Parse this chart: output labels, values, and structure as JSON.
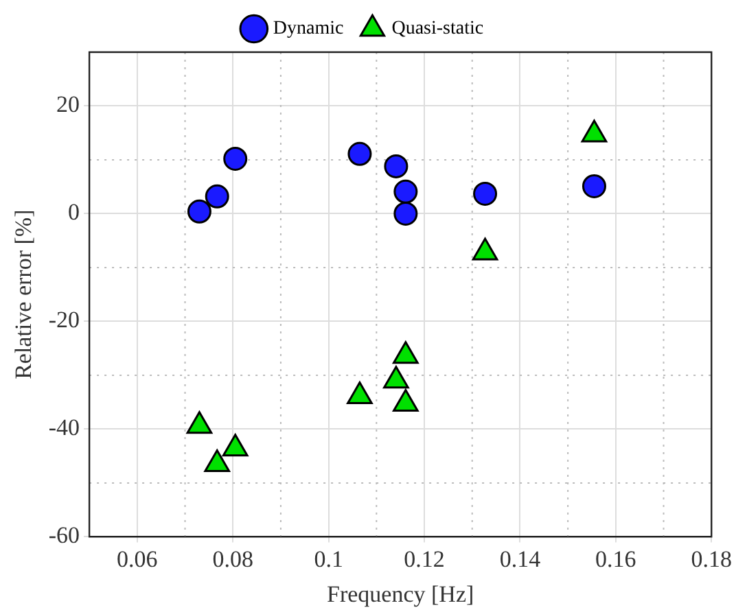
{
  "chart_data": {
    "type": "scatter",
    "xlabel": "Frequency [Hz]",
    "ylabel": "Relative error [%]",
    "xlim": [
      0.05,
      0.18
    ],
    "xticks": [
      0.06,
      0.08,
      0.1,
      0.12,
      0.14,
      0.16,
      0.18
    ],
    "ylim": [
      -60,
      30
    ],
    "yticks": [
      -60,
      -40,
      -20,
      0,
      20
    ],
    "grid": true,
    "legend": "top",
    "series": [
      {
        "name": "Dynamic",
        "color": "#1a1aff",
        "marker": "circle",
        "x": [
          0.073,
          0.0767,
          0.0805,
          0.1065,
          0.1141,
          0.1161,
          0.1161,
          0.1327,
          0.1555
        ],
        "values": [
          0.4,
          3.2,
          10.2,
          11.1,
          8.8,
          4.1,
          0,
          3.7,
          5.1
        ]
      },
      {
        "name": "Quasi-static",
        "color": "#00e000",
        "marker": "triangle",
        "x": [
          0.073,
          0.0767,
          0.0805,
          0.1065,
          0.1141,
          0.1161,
          0.1161,
          0.1327,
          0.1555
        ],
        "values": [
          -39.4,
          -46.5,
          -43.6,
          -33.9,
          -31.0,
          -26.4,
          -35.3,
          -7.2,
          14.7
        ]
      }
    ]
  }
}
